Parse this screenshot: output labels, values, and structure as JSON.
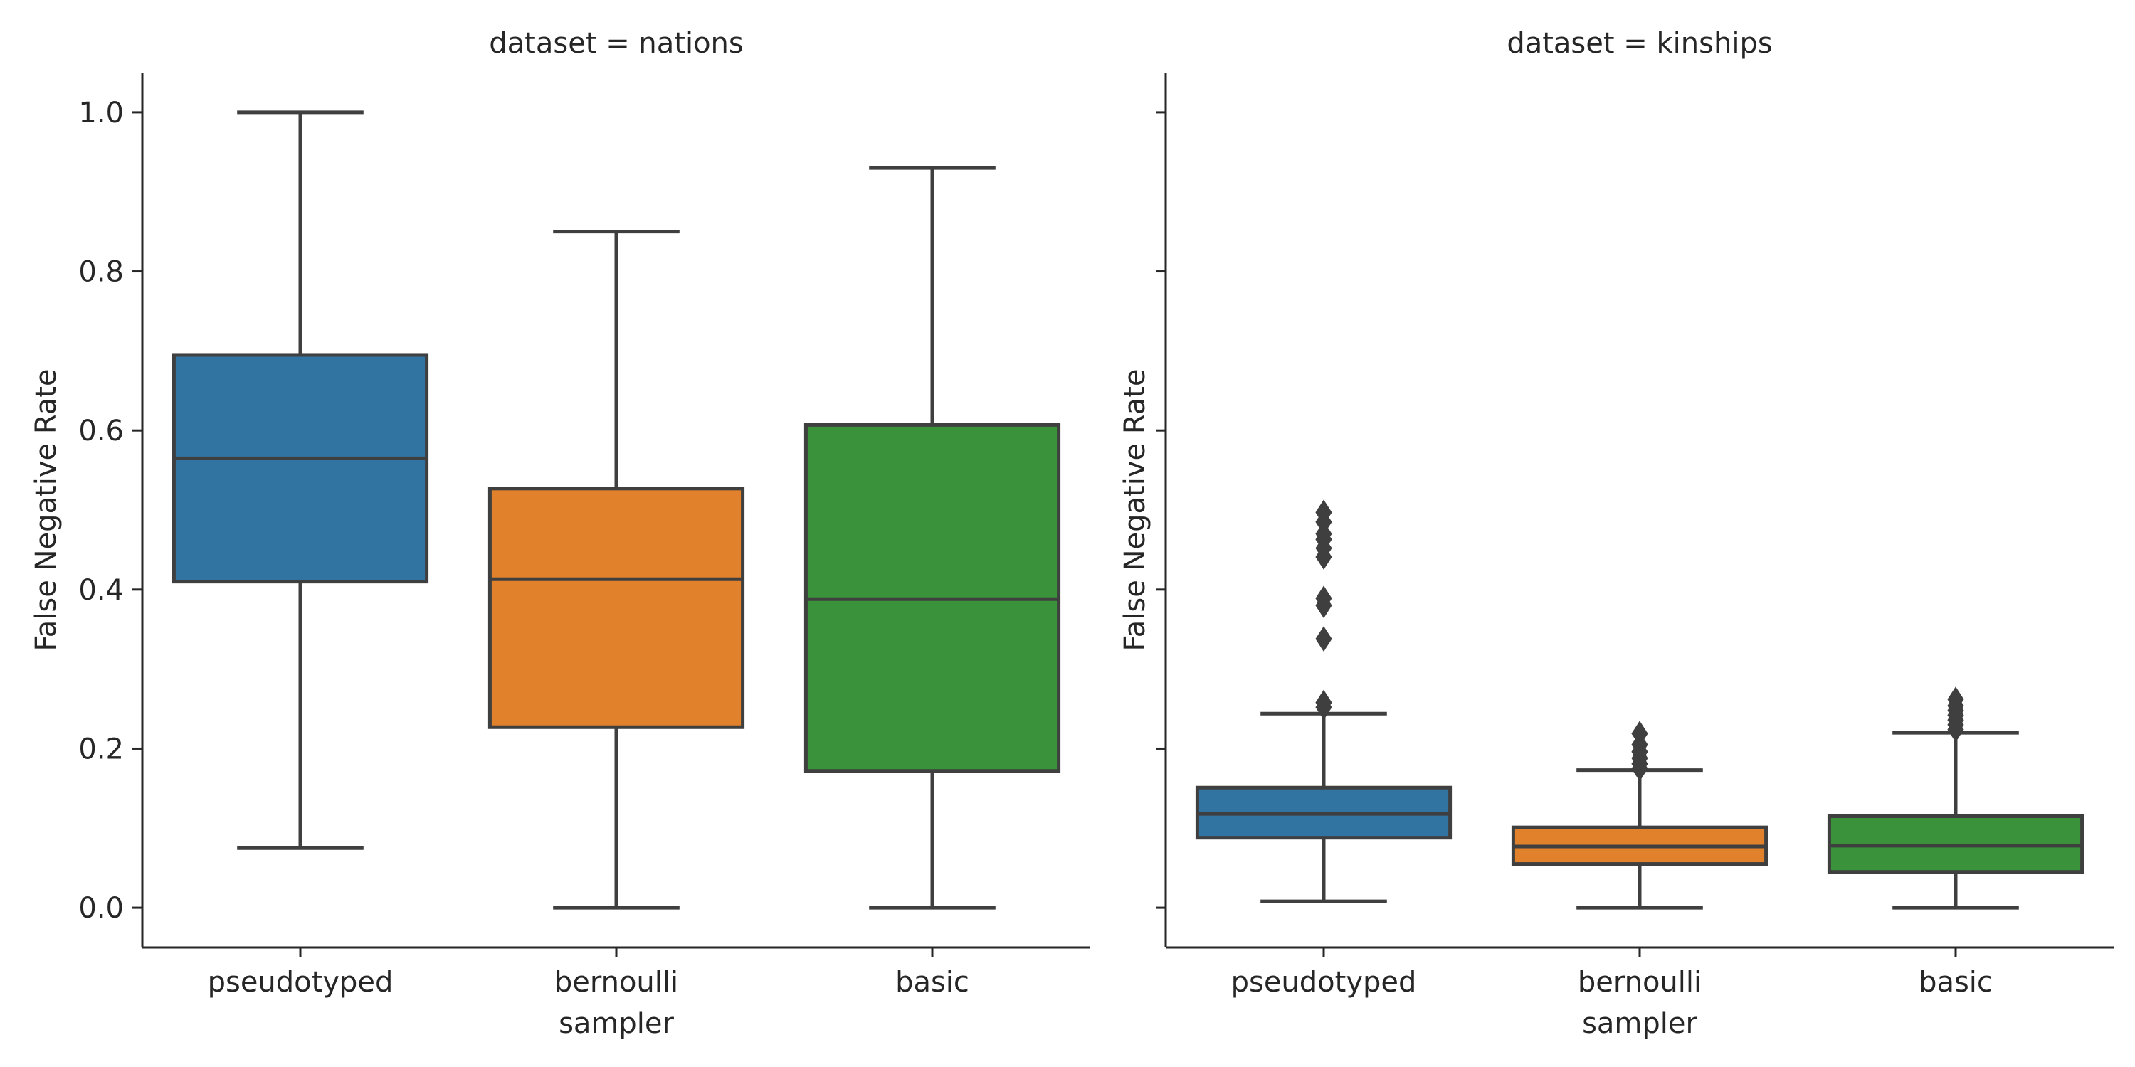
{
  "chart_data": [
    {
      "type": "box",
      "title": "dataset = nations",
      "xlabel": "sampler",
      "ylabel": "False Negative Rate",
      "categories": [
        "pseudotyped",
        "bernoulli",
        "basic"
      ],
      "yticks": [
        "0.0",
        "0.2",
        "0.4",
        "0.6",
        "0.8",
        "1.0"
      ],
      "ylim": [
        -0.05,
        1.05
      ],
      "grid": false,
      "colors": [
        "#3274a1",
        "#e1812c",
        "#3a923a"
      ],
      "boxes": [
        {
          "category": "pseudotyped",
          "whisker_low": 0.075,
          "q1": 0.41,
          "median": 0.565,
          "q3": 0.695,
          "whisker_high": 1.0,
          "outliers": []
        },
        {
          "category": "bernoulli",
          "whisker_low": 0.0,
          "q1": 0.227,
          "median": 0.413,
          "q3": 0.527,
          "whisker_high": 0.85,
          "outliers": []
        },
        {
          "category": "basic",
          "whisker_low": 0.0,
          "q1": 0.172,
          "median": 0.388,
          "q3": 0.607,
          "whisker_high": 0.93,
          "outliers": []
        }
      ]
    },
    {
      "type": "box",
      "title": "dataset = kinships",
      "xlabel": "sampler",
      "ylabel": "False Negative Rate",
      "categories": [
        "pseudotyped",
        "bernoulli",
        "basic"
      ],
      "yticks": [
        "",
        "",
        "",
        "",
        "",
        ""
      ],
      "ylim": [
        -0.05,
        1.05
      ],
      "grid": false,
      "colors": [
        "#3274a1",
        "#e1812c",
        "#3a923a"
      ],
      "boxes": [
        {
          "category": "pseudotyped",
          "whisker_low": 0.008,
          "q1": 0.088,
          "median": 0.118,
          "q3": 0.151,
          "whisker_high": 0.244,
          "outliers": [
            0.252,
            0.258,
            0.338,
            0.38,
            0.389,
            0.441,
            0.452,
            0.463,
            0.47,
            0.485,
            0.497
          ]
        },
        {
          "category": "bernoulli",
          "whisker_low": 0.0,
          "q1": 0.055,
          "median": 0.077,
          "q3": 0.101,
          "whisker_high": 0.173,
          "outliers": [
            0.175,
            0.181,
            0.188,
            0.196,
            0.205,
            0.219
          ]
        },
        {
          "category": "basic",
          "whisker_low": 0.0,
          "q1": 0.045,
          "median": 0.078,
          "q3": 0.115,
          "whisker_high": 0.22,
          "outliers": [
            0.224,
            0.23,
            0.236,
            0.242,
            0.248,
            0.254,
            0.262
          ]
        }
      ]
    }
  ]
}
